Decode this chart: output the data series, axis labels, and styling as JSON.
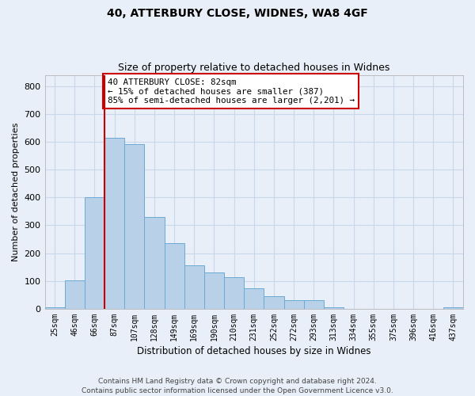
{
  "title1": "40, ATTERBURY CLOSE, WIDNES, WA8 4GF",
  "title2": "Size of property relative to detached houses in Widnes",
  "xlabel": "Distribution of detached houses by size in Widnes",
  "ylabel": "Number of detached properties",
  "footer": "Contains HM Land Registry data © Crown copyright and database right 2024.\nContains public sector information licensed under the Open Government Licence v3.0.",
  "bin_labels": [
    "25sqm",
    "46sqm",
    "66sqm",
    "87sqm",
    "107sqm",
    "128sqm",
    "149sqm",
    "169sqm",
    "190sqm",
    "210sqm",
    "231sqm",
    "252sqm",
    "272sqm",
    "293sqm",
    "313sqm",
    "334sqm",
    "355sqm",
    "375sqm",
    "396sqm",
    "416sqm",
    "437sqm"
  ],
  "bar_heights": [
    5,
    103,
    400,
    615,
    590,
    330,
    235,
    155,
    130,
    115,
    75,
    45,
    30,
    30,
    5,
    0,
    0,
    0,
    0,
    0,
    5
  ],
  "bar_color": "#b8d0e8",
  "bar_edge_color": "#6aaad4",
  "grid_color": "#c8d8ea",
  "vline_bin": 3,
  "vline_color": "#cc0000",
  "annotation_text": "40 ATTERBURY CLOSE: 82sqm\n← 15% of detached houses are smaller (387)\n85% of semi-detached houses are larger (2,201) →",
  "annotation_box_color": "#ffffff",
  "annotation_box_edge": "#cc0000",
  "ylim": [
    0,
    840
  ],
  "yticks": [
    0,
    100,
    200,
    300,
    400,
    500,
    600,
    700,
    800
  ],
  "background_color": "#e8eff8",
  "plot_background": "#e8eff8",
  "title1_fontsize": 10,
  "title2_fontsize": 9
}
